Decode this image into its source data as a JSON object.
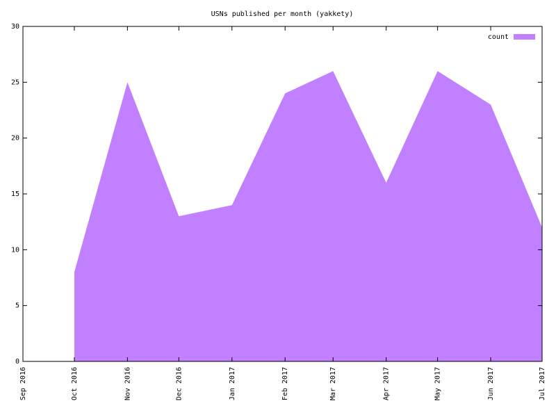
{
  "chart_data": {
    "type": "area",
    "title": "USNs published per month (yakkety)",
    "x": [
      "2016-10",
      "2016-11",
      "2016-12",
      "2017-01",
      "2017-02",
      "2017-03",
      "2017-04",
      "2017-05",
      "2017-06",
      "2017-07"
    ],
    "series": [
      {
        "name": "count",
        "color": "#c080ff",
        "values": [
          8,
          25,
          13,
          14,
          24,
          26,
          16,
          26,
          23,
          12
        ]
      }
    ],
    "xlim": [
      "2016-09",
      "2017-07"
    ],
    "xticks": [
      {
        "value": "2016-09",
        "label": "Sep 2016"
      },
      {
        "value": "2016-10",
        "label": "Oct 2016"
      },
      {
        "value": "2016-11",
        "label": "Nov 2016"
      },
      {
        "value": "2016-12",
        "label": "Dec 2016"
      },
      {
        "value": "2017-01",
        "label": "Jan 2017"
      },
      {
        "value": "2017-02",
        "label": "Feb 2017"
      },
      {
        "value": "2017-03",
        "label": "Mar 2017"
      },
      {
        "value": "2017-04",
        "label": "Apr 2017"
      },
      {
        "value": "2017-05",
        "label": "May 2017"
      },
      {
        "value": "2017-06",
        "label": "Jun 2017"
      },
      {
        "value": "2017-07",
        "label": "Jul 2017"
      }
    ],
    "ylim": [
      0,
      30
    ],
    "yticks": [
      0,
      5,
      10,
      15,
      20,
      25,
      30
    ],
    "legend": "top right"
  }
}
